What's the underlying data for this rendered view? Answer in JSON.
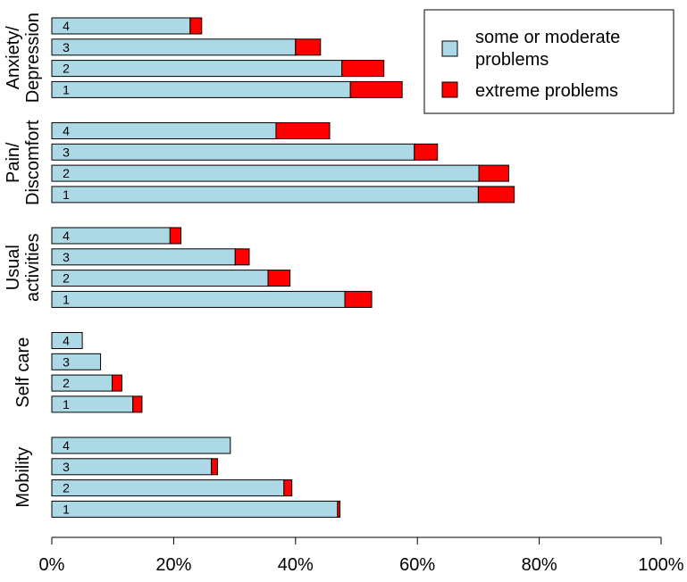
{
  "chart_data": {
    "type": "bar",
    "orientation": "horizontal",
    "stacked": true,
    "title": "",
    "xlabel": "",
    "ylabel": "",
    "xlim": [
      0,
      100
    ],
    "x_ticks": [
      "0%",
      "20%",
      "40%",
      "60%",
      "80%",
      "100%"
    ],
    "x_tick_values": [
      0,
      20,
      40,
      60,
      80,
      100
    ],
    "grid": false,
    "legend_position": "top-right",
    "series": [
      {
        "name": "some or moderate problems",
        "color": "#add8e6"
      },
      {
        "name": "extreme problems",
        "color": "#ff0000"
      }
    ],
    "legend": {
      "entries": [
        {
          "lines": [
            "some or moderate",
            "problems"
          ],
          "color": "#add8e6"
        },
        {
          "lines": [
            "extreme problems"
          ],
          "color": "#ff0000"
        }
      ]
    },
    "groups": [
      {
        "name": "Anxiety/ Depression",
        "label_lines": [
          "Anxiety/",
          "Depression"
        ],
        "bars": [
          {
            "label": "4",
            "moderate": 22.7,
            "extreme": 1.9
          },
          {
            "label": "3",
            "moderate": 40.0,
            "extreme": 4.1
          },
          {
            "label": "2",
            "moderate": 47.6,
            "extreme": 6.9
          },
          {
            "label": "1",
            "moderate": 49.0,
            "extreme": 8.5
          }
        ]
      },
      {
        "name": "Pain/ Discomfort",
        "label_lines": [
          "Pain/",
          "Discomfort"
        ],
        "bars": [
          {
            "label": "4",
            "moderate": 36.8,
            "extreme": 8.8
          },
          {
            "label": "3",
            "moderate": 59.5,
            "extreme": 3.8
          },
          {
            "label": "2",
            "moderate": 70.1,
            "extreme": 4.9
          },
          {
            "label": "1",
            "moderate": 70.0,
            "extreme": 5.9
          }
        ]
      },
      {
        "name": "Usual activities",
        "label_lines": [
          "Usual",
          "activities"
        ],
        "bars": [
          {
            "label": "4",
            "moderate": 19.4,
            "extreme": 1.8
          },
          {
            "label": "3",
            "moderate": 30.1,
            "extreme": 2.3
          },
          {
            "label": "2",
            "moderate": 35.5,
            "extreme": 3.6
          },
          {
            "label": "1",
            "moderate": 48.1,
            "extreme": 4.4
          }
        ]
      },
      {
        "name": "Self care",
        "label_lines": [
          "Self care"
        ],
        "bars": [
          {
            "label": "4",
            "moderate": 5.0,
            "extreme": 0.0
          },
          {
            "label": "3",
            "moderate": 8.0,
            "extreme": 0.0
          },
          {
            "label": "2",
            "moderate": 9.9,
            "extreme": 1.6
          },
          {
            "label": "1",
            "moderate": 13.3,
            "extreme": 1.5
          }
        ]
      },
      {
        "name": "Mobility",
        "label_lines": [
          "Mobility"
        ],
        "bars": [
          {
            "label": "4",
            "moderate": 29.3,
            "extreme": 0.0
          },
          {
            "label": "3",
            "moderate": 26.2,
            "extreme": 1.0
          },
          {
            "label": "2",
            "moderate": 38.1,
            "extreme": 1.3
          },
          {
            "label": "1",
            "moderate": 46.9,
            "extreme": 0.4
          }
        ]
      }
    ]
  }
}
